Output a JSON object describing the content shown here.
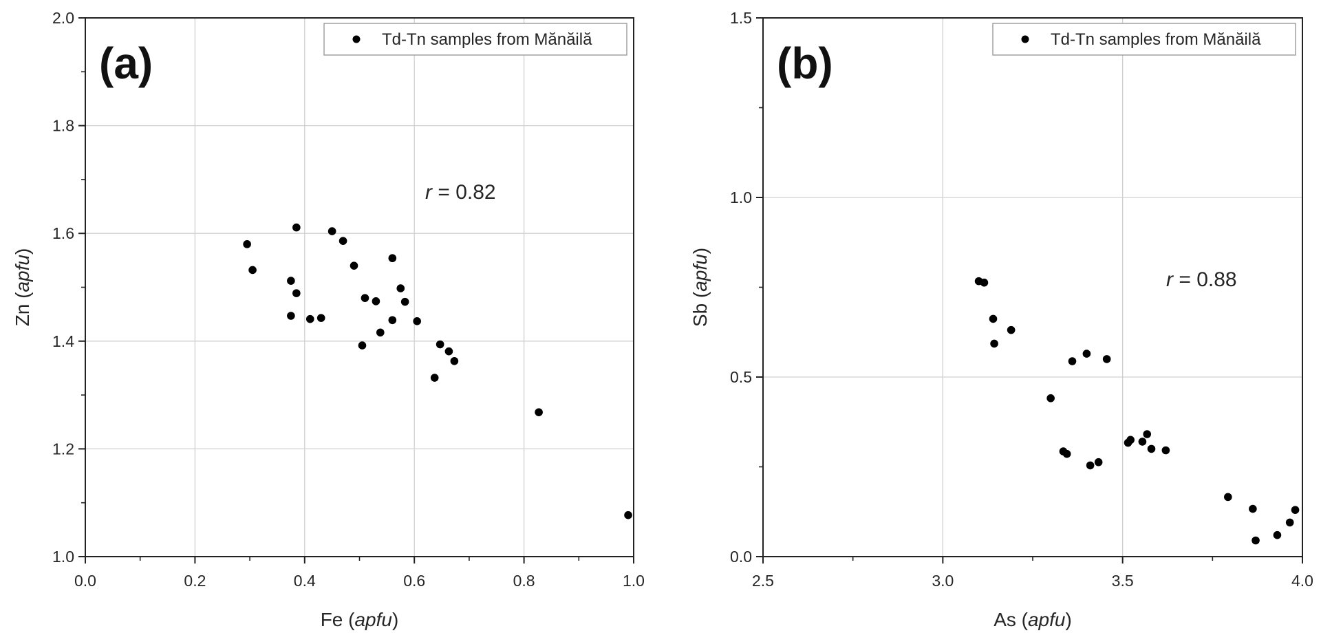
{
  "chart_data": [
    {
      "type": "scatter",
      "panel_label": "(a)",
      "legend": {
        "label": "Td-Tn samples from Mănăilă",
        "position": "top-right"
      },
      "annotation": {
        "var": "r",
        "text": " = 0.82"
      },
      "xlabel": {
        "main": "Fe (",
        "italic": "apfu",
        "close": ")"
      },
      "ylabel": {
        "main": "Zn (",
        "italic": "apfu",
        "close": ")"
      },
      "xlim": [
        0.0,
        1.0
      ],
      "ylim": [
        1.0,
        2.0
      ],
      "xticks": [
        "0.0",
        "0.2",
        "0.4",
        "0.6",
        "0.8",
        "1.0"
      ],
      "yticks": [
        "1.0",
        "1.2",
        "1.4",
        "1.6",
        "1.8",
        "2.0"
      ],
      "grid": true,
      "points": [
        [
          0.295,
          1.58
        ],
        [
          0.305,
          1.532
        ],
        [
          0.375,
          1.512
        ],
        [
          0.375,
          1.447
        ],
        [
          0.385,
          1.611
        ],
        [
          0.385,
          1.489
        ],
        [
          0.41,
          1.441
        ],
        [
          0.43,
          1.443
        ],
        [
          0.45,
          1.604
        ],
        [
          0.47,
          1.586
        ],
        [
          0.49,
          1.54
        ],
        [
          0.505,
          1.392
        ],
        [
          0.51,
          1.48
        ],
        [
          0.53,
          1.474
        ],
        [
          0.538,
          1.416
        ],
        [
          0.56,
          1.554
        ],
        [
          0.56,
          1.439
        ],
        [
          0.575,
          1.498
        ],
        [
          0.583,
          1.473
        ],
        [
          0.605,
          1.437
        ],
        [
          0.637,
          1.332
        ],
        [
          0.647,
          1.394
        ],
        [
          0.663,
          1.381
        ],
        [
          0.673,
          1.363
        ],
        [
          0.827,
          1.268
        ],
        [
          0.99,
          1.077
        ]
      ]
    },
    {
      "type": "scatter",
      "panel_label": "(b)",
      "legend": {
        "label": "Td-Tn samples from Mănăilă",
        "position": "top-right"
      },
      "annotation": {
        "var": "r",
        "text": " = 0.88"
      },
      "xlabel": {
        "main": "As (",
        "italic": "apfu",
        "close": ")"
      },
      "ylabel": {
        "main": "Sb (",
        "italic": "apfu",
        "close": ")"
      },
      "xlim": [
        2.5,
        4.0
      ],
      "ylim": [
        0.0,
        1.5
      ],
      "xticks": [
        "2.5",
        "3.0",
        "3.5",
        "4.0"
      ],
      "yticks": [
        "0.0",
        "0.5",
        "1.0",
        "1.5"
      ],
      "grid": true,
      "points": [
        [
          3.1,
          0.767
        ],
        [
          3.115,
          0.763
        ],
        [
          3.14,
          0.662
        ],
        [
          3.143,
          0.593
        ],
        [
          3.19,
          0.631
        ],
        [
          3.3,
          0.441
        ],
        [
          3.335,
          0.293
        ],
        [
          3.345,
          0.286
        ],
        [
          3.36,
          0.544
        ],
        [
          3.4,
          0.565
        ],
        [
          3.41,
          0.254
        ],
        [
          3.433,
          0.263
        ],
        [
          3.456,
          0.55
        ],
        [
          3.515,
          0.317
        ],
        [
          3.522,
          0.325
        ],
        [
          3.555,
          0.32
        ],
        [
          3.568,
          0.341
        ],
        [
          3.58,
          0.3
        ],
        [
          3.62,
          0.296
        ],
        [
          3.793,
          0.166
        ],
        [
          3.862,
          0.133
        ],
        [
          3.87,
          0.045
        ],
        [
          3.93,
          0.06
        ],
        [
          3.965,
          0.095
        ],
        [
          3.98,
          0.13
        ]
      ]
    }
  ]
}
